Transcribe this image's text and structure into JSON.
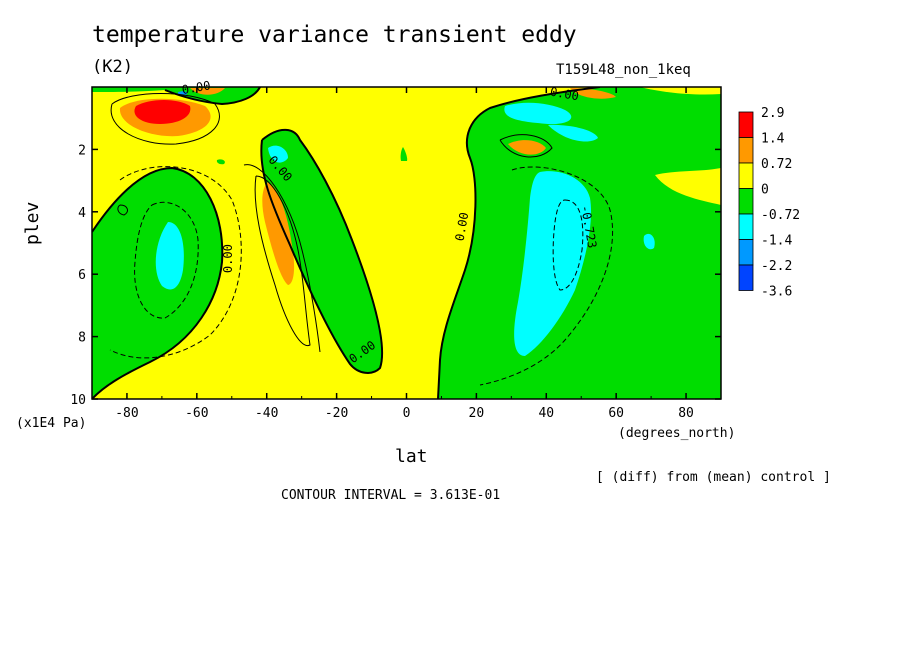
{
  "chart_data": {
    "type": "heatmap",
    "title": "temperature variance transient eddy",
    "units": "(K2)",
    "run_label": "T159L48_non_1keq",
    "xlabel": "lat",
    "x_units": "(degrees_north)",
    "ylabel": "plev",
    "y_units": "(x1E4 Pa)",
    "xlim": [
      -90,
      90
    ],
    "ylim": [
      10,
      0
    ],
    "x_ticks": [
      "-80",
      "-60",
      "-40",
      "-20",
      "0",
      "20",
      "40",
      "60",
      "80"
    ],
    "y_ticks": [
      "2",
      "4",
      "6",
      "8",
      "10"
    ],
    "color_levels": [
      "2.9",
      "1.4",
      "0.72",
      "0",
      "-0.72",
      "-1.4",
      "-2.2",
      "-3.6"
    ],
    "colors": [
      "#ff0000",
      "#ff9900",
      "#ffff00",
      "#00dd00",
      "#00ffff",
      "#0099ff",
      "#0044ff"
    ],
    "contour_labels": [
      "0.00",
      "0.00",
      "0.00",
      "0.00",
      "0.00",
      "0.00",
      "-0.723"
    ],
    "annotation": "[ (diff) from (mean) control ]",
    "contour_interval": "CONTOUR INTERVAL = 3.613E-01"
  }
}
